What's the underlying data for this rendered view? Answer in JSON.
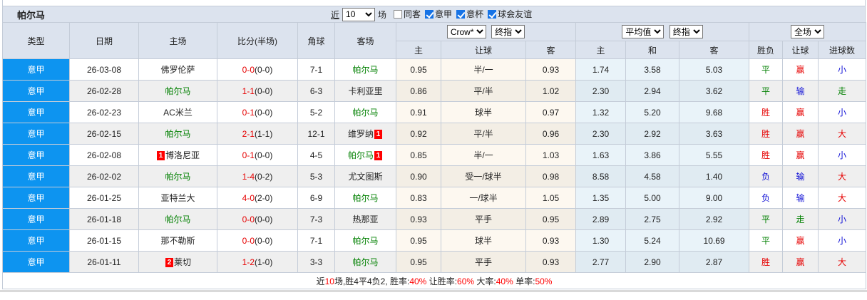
{
  "header": {
    "title": "帕尔马",
    "recent_label": "近",
    "recent_count": "10",
    "matches_label": "场",
    "filters": [
      {
        "label": "同客",
        "checked": false
      },
      {
        "label": "意甲",
        "checked": true
      },
      {
        "label": "意杯",
        "checked": true
      },
      {
        "label": "球会友谊",
        "checked": true
      }
    ]
  },
  "table": {
    "columns": [
      "类型",
      "日期",
      "主场",
      "比分(半场)",
      "角球",
      "客场"
    ],
    "asian_group": {
      "bookmaker_select": "Crow*",
      "stage_select": "终指",
      "sub_columns": [
        "主",
        "让球",
        "客"
      ]
    },
    "euro_group": {
      "source_select": "平均值",
      "stage_select": "终指",
      "sub_columns": [
        "主",
        "和",
        "客"
      ]
    },
    "result_group": {
      "scope_select": "全场",
      "sub_columns": [
        "胜负",
        "让球",
        "进球数"
      ]
    },
    "rows": [
      {
        "type": "意甲",
        "date": "26-03-08",
        "home": {
          "name": "佛罗伦萨",
          "focus": false
        },
        "score_ft": "0-0",
        "score_ht": "(0-0)",
        "corners": "7-1",
        "away": {
          "name": "帕尔马",
          "focus": true
        },
        "asian": {
          "home": "0.95",
          "handicap": "半/一",
          "away": "0.93"
        },
        "euro": {
          "home": "1.74",
          "draw": "3.58",
          "away": "5.03"
        },
        "results": [
          {
            "text": "平",
            "color": "green"
          },
          {
            "text": "赢",
            "color": "red"
          },
          {
            "text": "小",
            "color": "blue"
          }
        ]
      },
      {
        "type": "意甲",
        "date": "26-02-28",
        "home": {
          "name": "帕尔马",
          "focus": true
        },
        "score_ft": "1-1",
        "score_ht": "(0-0)",
        "corners": "6-3",
        "away": {
          "name": "卡利亚里",
          "focus": false
        },
        "asian": {
          "home": "0.86",
          "handicap": "平/半",
          "away": "1.02"
        },
        "euro": {
          "home": "2.30",
          "draw": "2.94",
          "away": "3.62"
        },
        "results": [
          {
            "text": "平",
            "color": "green"
          },
          {
            "text": "输",
            "color": "blue"
          },
          {
            "text": "走",
            "color": "green"
          }
        ]
      },
      {
        "type": "意甲",
        "date": "26-02-23",
        "home": {
          "name": "AC米兰",
          "focus": false
        },
        "score_ft": "0-1",
        "score_ht": "(0-0)",
        "corners": "5-2",
        "away": {
          "name": "帕尔马",
          "focus": true
        },
        "asian": {
          "home": "0.91",
          "handicap": "球半",
          "away": "0.97"
        },
        "euro": {
          "home": "1.32",
          "draw": "5.20",
          "away": "9.68"
        },
        "results": [
          {
            "text": "胜",
            "color": "red"
          },
          {
            "text": "赢",
            "color": "red"
          },
          {
            "text": "小",
            "color": "blue"
          }
        ]
      },
      {
        "type": "意甲",
        "date": "26-02-15",
        "home": {
          "name": "帕尔马",
          "focus": true
        },
        "score_ft": "2-1",
        "score_ht": "(1-1)",
        "corners": "12-1",
        "away": {
          "name": "维罗纳",
          "focus": false,
          "red_cards": "1",
          "badge_side": "right"
        },
        "asian": {
          "home": "0.92",
          "handicap": "平/半",
          "away": "0.96"
        },
        "euro": {
          "home": "2.30",
          "draw": "2.92",
          "away": "3.63"
        },
        "results": [
          {
            "text": "胜",
            "color": "red"
          },
          {
            "text": "赢",
            "color": "red"
          },
          {
            "text": "大",
            "color": "red"
          }
        ]
      },
      {
        "type": "意甲",
        "date": "26-02-08",
        "home": {
          "name": "博洛尼亚",
          "focus": false,
          "red_cards": "1",
          "badge_side": "left"
        },
        "score_ft": "0-1",
        "score_ht": "(0-0)",
        "corners": "4-5",
        "away": {
          "name": "帕尔马",
          "focus": true,
          "red_cards": "1",
          "badge_side": "right"
        },
        "asian": {
          "home": "0.85",
          "handicap": "半/一",
          "away": "1.03"
        },
        "euro": {
          "home": "1.63",
          "draw": "3.86",
          "away": "5.55"
        },
        "results": [
          {
            "text": "胜",
            "color": "red"
          },
          {
            "text": "赢",
            "color": "red"
          },
          {
            "text": "小",
            "color": "blue"
          }
        ]
      },
      {
        "type": "意甲",
        "date": "26-02-02",
        "home": {
          "name": "帕尔马",
          "focus": true
        },
        "score_ft": "1-4",
        "score_ht": "(0-2)",
        "corners": "5-3",
        "away": {
          "name": "尤文图斯",
          "focus": false
        },
        "asian": {
          "home": "0.90",
          "handicap": "受一/球半",
          "away": "0.98"
        },
        "euro": {
          "home": "8.58",
          "draw": "4.58",
          "away": "1.40"
        },
        "results": [
          {
            "text": "负",
            "color": "blue"
          },
          {
            "text": "输",
            "color": "blue"
          },
          {
            "text": "大",
            "color": "red"
          }
        ]
      },
      {
        "type": "意甲",
        "date": "26-01-25",
        "home": {
          "name": "亚特兰大",
          "focus": false
        },
        "score_ft": "4-0",
        "score_ht": "(2-0)",
        "corners": "6-9",
        "away": {
          "name": "帕尔马",
          "focus": true
        },
        "asian": {
          "home": "0.83",
          "handicap": "一/球半",
          "away": "1.05"
        },
        "euro": {
          "home": "1.35",
          "draw": "5.00",
          "away": "9.00"
        },
        "results": [
          {
            "text": "负",
            "color": "blue"
          },
          {
            "text": "输",
            "color": "blue"
          },
          {
            "text": "大",
            "color": "red"
          }
        ]
      },
      {
        "type": "意甲",
        "date": "26-01-18",
        "home": {
          "name": "帕尔马",
          "focus": true
        },
        "score_ft": "0-0",
        "score_ht": "(0-0)",
        "corners": "7-3",
        "away": {
          "name": "热那亚",
          "focus": false
        },
        "asian": {
          "home": "0.93",
          "handicap": "平手",
          "away": "0.95"
        },
        "euro": {
          "home": "2.89",
          "draw": "2.75",
          "away": "2.92"
        },
        "results": [
          {
            "text": "平",
            "color": "green"
          },
          {
            "text": "走",
            "color": "green"
          },
          {
            "text": "小",
            "color": "blue"
          }
        ]
      },
      {
        "type": "意甲",
        "date": "26-01-15",
        "home": {
          "name": "那不勒斯",
          "focus": false
        },
        "score_ft": "0-0",
        "score_ht": "(0-0)",
        "corners": "7-1",
        "away": {
          "name": "帕尔马",
          "focus": true
        },
        "asian": {
          "home": "0.95",
          "handicap": "球半",
          "away": "0.93"
        },
        "euro": {
          "home": "1.30",
          "draw": "5.24",
          "away": "10.69"
        },
        "results": [
          {
            "text": "平",
            "color": "green"
          },
          {
            "text": "赢",
            "color": "red"
          },
          {
            "text": "小",
            "color": "blue"
          }
        ]
      },
      {
        "type": "意甲",
        "date": "26-01-11",
        "home": {
          "name": "莱切",
          "focus": false,
          "red_cards": "2",
          "badge_side": "left"
        },
        "score_ft": "1-2",
        "score_ht": "(1-0)",
        "corners": "3-3",
        "away": {
          "name": "帕尔马",
          "focus": true
        },
        "asian": {
          "home": "0.95",
          "handicap": "平手",
          "away": "0.93"
        },
        "euro": {
          "home": "2.77",
          "draw": "2.90",
          "away": "2.87"
        },
        "results": [
          {
            "text": "胜",
            "color": "red"
          },
          {
            "text": "赢",
            "color": "red"
          },
          {
            "text": "大",
            "color": "red"
          }
        ]
      }
    ]
  },
  "footer": {
    "segments": [
      {
        "text": "近",
        "red": false
      },
      {
        "text": "10",
        "red": true
      },
      {
        "text": "场,胜4平4负2, 胜率:",
        "red": false
      },
      {
        "text": "40%",
        "red": true
      },
      {
        "text": " 让胜率:",
        "red": false
      },
      {
        "text": "60%",
        "red": true
      },
      {
        "text": " 大率:",
        "red": false
      },
      {
        "text": "40%",
        "red": true
      },
      {
        "text": " 单率:",
        "red": false
      },
      {
        "text": "50%",
        "red": true
      }
    ]
  },
  "colors": {
    "header-bg": "#dce3ee",
    "type-cell": "#0d94f0",
    "focus-team": "#008000",
    "red": "#e60000",
    "green": "#008000",
    "blue": "#1212d6",
    "asian-col": "#fdf8f0",
    "euro-col": "#e9f3f9",
    "row-alt": "#efefef",
    "checkbox-blue": "#1673e6"
  }
}
